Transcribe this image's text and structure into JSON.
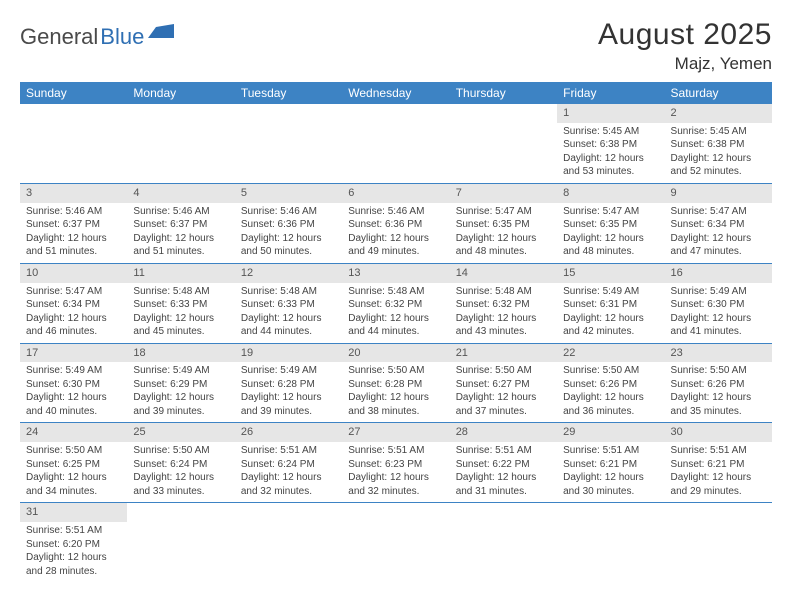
{
  "logo": {
    "part1": "General",
    "part2": "Blue"
  },
  "title": "August 2025",
  "location": "Majz, Yemen",
  "colors": {
    "header_bg": "#3d83c4",
    "header_text": "#ffffff",
    "daynum_bg": "#e6e6e6",
    "row_border": "#3d83c4",
    "logo_blue": "#2f6fb3",
    "logo_gray": "#4a4a4a"
  },
  "weekdays": [
    "Sunday",
    "Monday",
    "Tuesday",
    "Wednesday",
    "Thursday",
    "Friday",
    "Saturday"
  ],
  "weeks": [
    [
      {
        "n": "",
        "sr": "",
        "ss": "",
        "dl": ""
      },
      {
        "n": "",
        "sr": "",
        "ss": "",
        "dl": ""
      },
      {
        "n": "",
        "sr": "",
        "ss": "",
        "dl": ""
      },
      {
        "n": "",
        "sr": "",
        "ss": "",
        "dl": ""
      },
      {
        "n": "",
        "sr": "",
        "ss": "",
        "dl": ""
      },
      {
        "n": "1",
        "sr": "Sunrise: 5:45 AM",
        "ss": "Sunset: 6:38 PM",
        "dl": "Daylight: 12 hours and 53 minutes."
      },
      {
        "n": "2",
        "sr": "Sunrise: 5:45 AM",
        "ss": "Sunset: 6:38 PM",
        "dl": "Daylight: 12 hours and 52 minutes."
      }
    ],
    [
      {
        "n": "3",
        "sr": "Sunrise: 5:46 AM",
        "ss": "Sunset: 6:37 PM",
        "dl": "Daylight: 12 hours and 51 minutes."
      },
      {
        "n": "4",
        "sr": "Sunrise: 5:46 AM",
        "ss": "Sunset: 6:37 PM",
        "dl": "Daylight: 12 hours and 51 minutes."
      },
      {
        "n": "5",
        "sr": "Sunrise: 5:46 AM",
        "ss": "Sunset: 6:36 PM",
        "dl": "Daylight: 12 hours and 50 minutes."
      },
      {
        "n": "6",
        "sr": "Sunrise: 5:46 AM",
        "ss": "Sunset: 6:36 PM",
        "dl": "Daylight: 12 hours and 49 minutes."
      },
      {
        "n": "7",
        "sr": "Sunrise: 5:47 AM",
        "ss": "Sunset: 6:35 PM",
        "dl": "Daylight: 12 hours and 48 minutes."
      },
      {
        "n": "8",
        "sr": "Sunrise: 5:47 AM",
        "ss": "Sunset: 6:35 PM",
        "dl": "Daylight: 12 hours and 48 minutes."
      },
      {
        "n": "9",
        "sr": "Sunrise: 5:47 AM",
        "ss": "Sunset: 6:34 PM",
        "dl": "Daylight: 12 hours and 47 minutes."
      }
    ],
    [
      {
        "n": "10",
        "sr": "Sunrise: 5:47 AM",
        "ss": "Sunset: 6:34 PM",
        "dl": "Daylight: 12 hours and 46 minutes."
      },
      {
        "n": "11",
        "sr": "Sunrise: 5:48 AM",
        "ss": "Sunset: 6:33 PM",
        "dl": "Daylight: 12 hours and 45 minutes."
      },
      {
        "n": "12",
        "sr": "Sunrise: 5:48 AM",
        "ss": "Sunset: 6:33 PM",
        "dl": "Daylight: 12 hours and 44 minutes."
      },
      {
        "n": "13",
        "sr": "Sunrise: 5:48 AM",
        "ss": "Sunset: 6:32 PM",
        "dl": "Daylight: 12 hours and 44 minutes."
      },
      {
        "n": "14",
        "sr": "Sunrise: 5:48 AM",
        "ss": "Sunset: 6:32 PM",
        "dl": "Daylight: 12 hours and 43 minutes."
      },
      {
        "n": "15",
        "sr": "Sunrise: 5:49 AM",
        "ss": "Sunset: 6:31 PM",
        "dl": "Daylight: 12 hours and 42 minutes."
      },
      {
        "n": "16",
        "sr": "Sunrise: 5:49 AM",
        "ss": "Sunset: 6:30 PM",
        "dl": "Daylight: 12 hours and 41 minutes."
      }
    ],
    [
      {
        "n": "17",
        "sr": "Sunrise: 5:49 AM",
        "ss": "Sunset: 6:30 PM",
        "dl": "Daylight: 12 hours and 40 minutes."
      },
      {
        "n": "18",
        "sr": "Sunrise: 5:49 AM",
        "ss": "Sunset: 6:29 PM",
        "dl": "Daylight: 12 hours and 39 minutes."
      },
      {
        "n": "19",
        "sr": "Sunrise: 5:49 AM",
        "ss": "Sunset: 6:28 PM",
        "dl": "Daylight: 12 hours and 39 minutes."
      },
      {
        "n": "20",
        "sr": "Sunrise: 5:50 AM",
        "ss": "Sunset: 6:28 PM",
        "dl": "Daylight: 12 hours and 38 minutes."
      },
      {
        "n": "21",
        "sr": "Sunrise: 5:50 AM",
        "ss": "Sunset: 6:27 PM",
        "dl": "Daylight: 12 hours and 37 minutes."
      },
      {
        "n": "22",
        "sr": "Sunrise: 5:50 AM",
        "ss": "Sunset: 6:26 PM",
        "dl": "Daylight: 12 hours and 36 minutes."
      },
      {
        "n": "23",
        "sr": "Sunrise: 5:50 AM",
        "ss": "Sunset: 6:26 PM",
        "dl": "Daylight: 12 hours and 35 minutes."
      }
    ],
    [
      {
        "n": "24",
        "sr": "Sunrise: 5:50 AM",
        "ss": "Sunset: 6:25 PM",
        "dl": "Daylight: 12 hours and 34 minutes."
      },
      {
        "n": "25",
        "sr": "Sunrise: 5:50 AM",
        "ss": "Sunset: 6:24 PM",
        "dl": "Daylight: 12 hours and 33 minutes."
      },
      {
        "n": "26",
        "sr": "Sunrise: 5:51 AM",
        "ss": "Sunset: 6:24 PM",
        "dl": "Daylight: 12 hours and 32 minutes."
      },
      {
        "n": "27",
        "sr": "Sunrise: 5:51 AM",
        "ss": "Sunset: 6:23 PM",
        "dl": "Daylight: 12 hours and 32 minutes."
      },
      {
        "n": "28",
        "sr": "Sunrise: 5:51 AM",
        "ss": "Sunset: 6:22 PM",
        "dl": "Daylight: 12 hours and 31 minutes."
      },
      {
        "n": "29",
        "sr": "Sunrise: 5:51 AM",
        "ss": "Sunset: 6:21 PM",
        "dl": "Daylight: 12 hours and 30 minutes."
      },
      {
        "n": "30",
        "sr": "Sunrise: 5:51 AM",
        "ss": "Sunset: 6:21 PM",
        "dl": "Daylight: 12 hours and 29 minutes."
      }
    ],
    [
      {
        "n": "31",
        "sr": "Sunrise: 5:51 AM",
        "ss": "Sunset: 6:20 PM",
        "dl": "Daylight: 12 hours and 28 minutes."
      },
      {
        "n": "",
        "sr": "",
        "ss": "",
        "dl": ""
      },
      {
        "n": "",
        "sr": "",
        "ss": "",
        "dl": ""
      },
      {
        "n": "",
        "sr": "",
        "ss": "",
        "dl": ""
      },
      {
        "n": "",
        "sr": "",
        "ss": "",
        "dl": ""
      },
      {
        "n": "",
        "sr": "",
        "ss": "",
        "dl": ""
      },
      {
        "n": "",
        "sr": "",
        "ss": "",
        "dl": ""
      }
    ]
  ]
}
